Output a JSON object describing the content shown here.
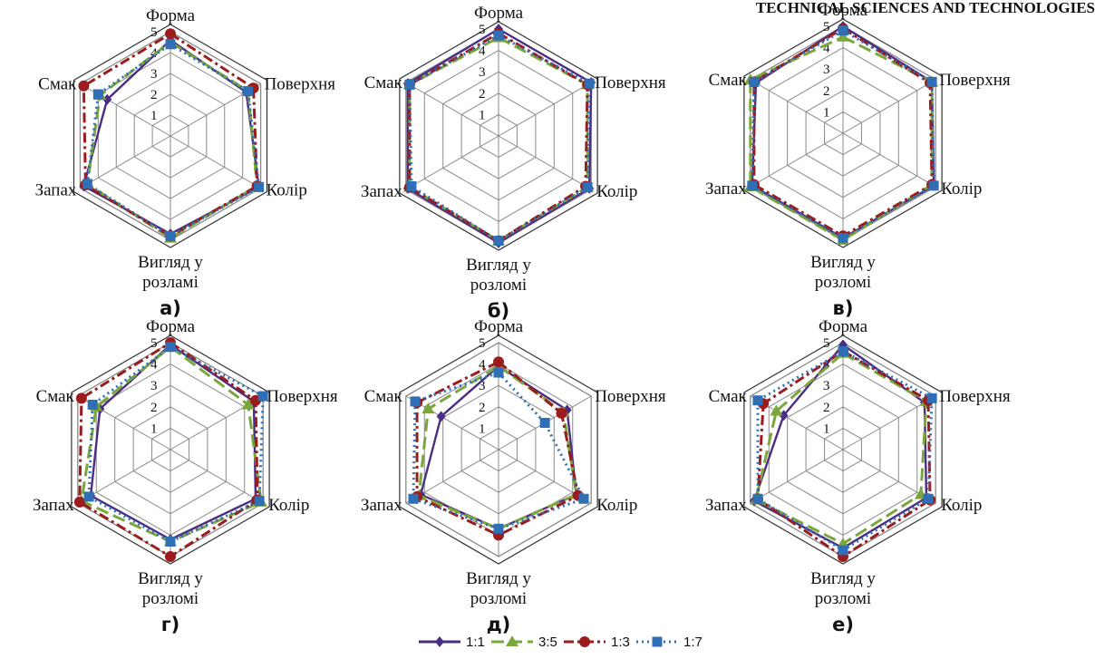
{
  "header": {
    "text": "TECHNICAL SCIENCES AND TECHNOLOGIES"
  },
  "chart_data": {
    "type": "radar",
    "axes": [
      "Форма",
      "Поверхня",
      "Колір",
      "Вигляд у розломі",
      "Запах",
      "Смак"
    ],
    "ticks": [
      "1",
      "2",
      "3",
      "4",
      "5"
    ],
    "rlim": [
      0,
      5
    ],
    "legend_position": "bottom",
    "series": [
      {
        "name": "1:1",
        "color": "#4b2e83",
        "dash": "solid",
        "marker": "diamond"
      },
      {
        "name": "3:5",
        "color": "#7aa63a",
        "dash": "long-dash",
        "marker": "triangle"
      },
      {
        "name": "1:3",
        "color": "#9b1c1c",
        "dash": "dash-dot",
        "marker": "circle"
      },
      {
        "name": "1:7",
        "color": "#2e6fb5",
        "dash": "dotted",
        "marker": "square"
      }
    ],
    "panels": [
      {
        "label": "а)",
        "axis_labels": [
          "Форма",
          "Поверхня",
          "Колір",
          "Вигляд у розламі",
          "Запах",
          "Смак"
        ],
        "values": [
          [
            4.6,
            4.2,
            4.9,
            4.7,
            4.8,
            3.5
          ],
          [
            4.5,
            4.3,
            4.8,
            4.9,
            4.6,
            3.9
          ],
          [
            4.9,
            4.6,
            4.8,
            4.8,
            4.7,
            4.8
          ],
          [
            4.4,
            4.3,
            4.9,
            4.8,
            4.6,
            4.0
          ]
        ]
      },
      {
        "label": "б)",
        "axis_labels": [
          "Форма",
          "Поверхня",
          "Колір",
          "Вигляд у розломі",
          "Запах",
          "Смак"
        ],
        "values": [
          [
            5.0,
            5.0,
            4.9,
            5.0,
            4.9,
            4.9
          ],
          [
            4.6,
            4.8,
            4.8,
            4.9,
            4.8,
            4.8
          ],
          [
            4.8,
            4.8,
            4.7,
            4.9,
            4.8,
            4.8
          ],
          [
            4.7,
            4.9,
            4.8,
            4.9,
            4.7,
            4.8
          ]
        ]
      },
      {
        "label": "в)",
        "axis_labels": [
          "Форма",
          "Поверхня",
          "Колір",
          "Вигляд у розломі",
          "Запах",
          "Смак"
        ],
        "values": [
          [
            5.0,
            4.8,
            4.9,
            4.9,
            4.9,
            4.7
          ],
          [
            4.5,
            4.8,
            4.8,
            5.0,
            5.0,
            5.0
          ],
          [
            4.9,
            4.7,
            4.8,
            4.8,
            4.8,
            4.8
          ],
          [
            4.8,
            4.8,
            4.9,
            4.9,
            4.9,
            4.8
          ]
        ]
      },
      {
        "label": "г)",
        "axis_labels": [
          "Форма",
          "Поверхня",
          "Колір",
          "Вигляд у розломі",
          "Запах",
          "Смак"
        ],
        "values": [
          [
            4.9,
            4.5,
            4.6,
            4.2,
            4.3,
            3.8
          ],
          [
            4.8,
            4.2,
            4.9,
            4.3,
            4.8,
            4.0
          ],
          [
            5.0,
            4.6,
            4.7,
            5.0,
            4.9,
            4.8
          ],
          [
            4.8,
            5.0,
            4.8,
            4.3,
            4.4,
            4.2
          ]
        ]
      },
      {
        "label": "д)",
        "axis_labels": [
          "Форма",
          "Поверхня",
          "Колір",
          "Вигляд у розломі",
          "Запах",
          "Смак"
        ],
        "values": [
          [
            3.9,
            3.7,
            4.2,
            3.7,
            4.2,
            3.1
          ],
          [
            3.9,
            3.5,
            4.2,
            3.7,
            4.3,
            3.8
          ],
          [
            4.1,
            3.4,
            4.3,
            4.0,
            4.4,
            4.4
          ],
          [
            3.6,
            2.5,
            4.6,
            3.7,
            4.6,
            4.5
          ]
        ]
      },
      {
        "label": "е)",
        "axis_labels": [
          "Форма",
          "Поверхня",
          "Колір",
          "Вигляд у розломі",
          "Запах",
          "Смак"
        ],
        "values": [
          [
            4.9,
            4.4,
            4.5,
            4.6,
            4.8,
            3.2
          ],
          [
            4.5,
            4.5,
            4.2,
            4.4,
            4.7,
            3.6
          ],
          [
            4.6,
            4.6,
            4.7,
            5.0,
            4.6,
            4.3
          ],
          [
            4.6,
            4.8,
            4.6,
            4.7,
            4.6,
            4.6
          ]
        ]
      }
    ]
  }
}
